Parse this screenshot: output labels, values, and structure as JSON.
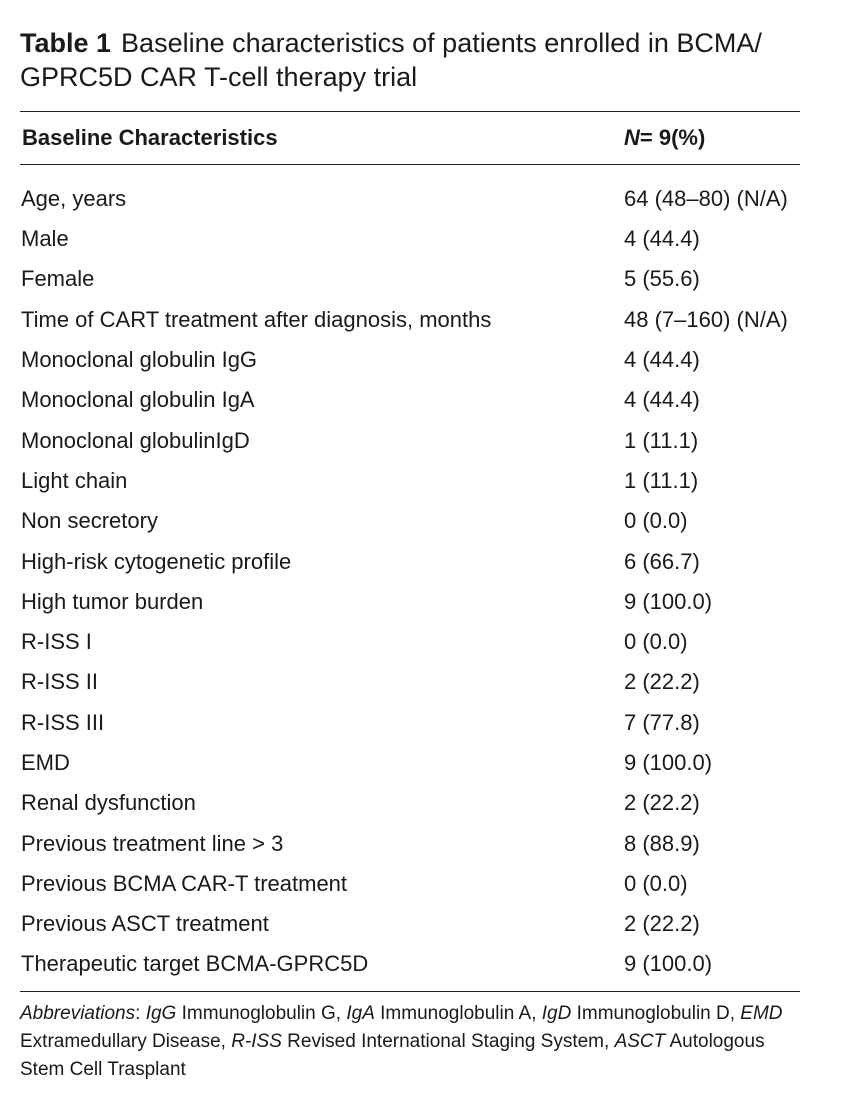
{
  "caption": {
    "number": "Table 1",
    "text": "Baseline characteristics of patients enrolled in BCMA/ GPRC5D CAR T-cell therapy trial"
  },
  "header": {
    "col1": "Baseline Characteristics",
    "col2_n": "N",
    "col2_rest": "= 9(%)"
  },
  "rows": [
    {
      "label": "Age, years",
      "value": "64 (48–80) (N/A)"
    },
    {
      "label": "Male",
      "value": "4 (44.4)"
    },
    {
      "label": "Female",
      "value": "5 (55.6)"
    },
    {
      "label": "Time of CART treatment after diagnosis, months",
      "value": "48 (7–160) (N/A)"
    },
    {
      "label": "Monoclonal globulin IgG",
      "value": "4 (44.4)"
    },
    {
      "label": "Monoclonal globulin IgA",
      "value": "4 (44.4)"
    },
    {
      "label": "Monoclonal globulinIgD",
      "value": "1 (11.1)"
    },
    {
      "label": "Light chain",
      "value": "1 (11.1)"
    },
    {
      "label": "Non secretory",
      "value": "0 (0.0)"
    },
    {
      "label": "High-risk cytogenetic profile",
      "value": "6 (66.7)"
    },
    {
      "label": "High tumor burden",
      "value": "9 (100.0)"
    },
    {
      "label": "R-ISS I",
      "value": "0 (0.0)"
    },
    {
      "label": "R-ISS II",
      "value": "2 (22.2)"
    },
    {
      "label": "R-ISS III",
      "value": "7 (77.8)"
    },
    {
      "label": "EMD",
      "value": "9 (100.0)"
    },
    {
      "label": "Renal dysfunction",
      "value": "2 (22.2)"
    },
    {
      "label": "Previous treatment line > 3",
      "value": "8 (88.9)"
    },
    {
      "label": "Previous BCMA CAR-T treatment",
      "value": "0 (0.0)"
    },
    {
      "label": "Previous ASCT treatment",
      "value": "2 (22.2)"
    },
    {
      "label": "Therapeutic target BCMA-GPRC5D",
      "value": "9 (100.0)"
    }
  ],
  "footnote": {
    "lead": "Abbreviations",
    "colon": ": ",
    "items": [
      {
        "abbr": "IgG",
        "def": " Immunoglobulin G, "
      },
      {
        "abbr": "IgA",
        "def": " Immunoglobulin A, "
      },
      {
        "abbr": "IgD",
        "def": " Immunoglobulin D, "
      },
      {
        "abbr": "EMD",
        "def": " Extramedullary Disease, "
      },
      {
        "abbr": "R-ISS",
        "def": " Revised International Staging System, "
      },
      {
        "abbr": "ASCT",
        "def": " Autologous Stem Cell Trasplant"
      }
    ]
  }
}
